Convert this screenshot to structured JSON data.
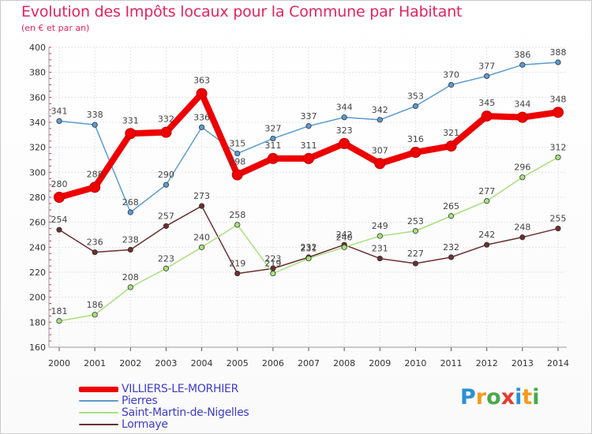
{
  "header": {
    "title": "Evolution des Impôts locaux pour la Commune par Habitant",
    "subtitle": "(en € et par an)"
  },
  "brand": {
    "text": "Proxiti",
    "letters": [
      "P",
      "r",
      "o",
      "x",
      "i",
      "t",
      "i"
    ],
    "colors": [
      "#2a8fd6",
      "#f39a1d",
      "#4aa84a",
      "#e63a2b",
      "#2a8fd6",
      "#f39a1d",
      "#4aa84a"
    ]
  },
  "chart_data": {
    "type": "line",
    "title": "Evolution des Impôts locaux pour la Commune par Habitant",
    "subtitle": "(en € et par an)",
    "xlabel": "",
    "ylabel": "",
    "x": [
      "2000",
      "2001",
      "2002",
      "2003",
      "2004",
      "2005",
      "2006",
      "2007",
      "2008",
      "2009",
      "2010",
      "2011",
      "2012",
      "2013",
      "2014"
    ],
    "ylim": [
      160,
      400
    ],
    "yticks": [
      "160",
      "180",
      "200",
      "220",
      "240",
      "260",
      "280",
      "300",
      "320",
      "340",
      "360",
      "380",
      "400"
    ],
    "grid": true,
    "legend": "bottom-left",
    "series": [
      {
        "name": "VILLIERS-LE-MORHIER",
        "color": "#ee0000",
        "values": [
          280,
          288,
          331,
          332,
          363,
          298,
          311,
          311,
          323,
          307,
          316,
          321,
          345,
          344,
          348
        ],
        "labels": [
          "280",
          "288",
          "331",
          "332",
          "363",
          "298",
          "311",
          "311",
          "323",
          "307",
          "316",
          "321",
          "345",
          "344",
          "348"
        ]
      },
      {
        "name": "Pierres",
        "color": "#5b9bd0",
        "values": [
          341,
          338,
          268,
          290,
          336,
          315,
          327,
          337,
          344,
          342,
          353,
          370,
          377,
          386,
          388
        ],
        "labels": [
          "341",
          "338",
          "268",
          "290",
          "336",
          "315",
          "327",
          "337",
          "344",
          "342",
          "353",
          "370",
          "377",
          "386",
          "388"
        ]
      },
      {
        "name": "Saint-Martin-de-Nigelles",
        "color": "#a8e07e",
        "values": [
          181,
          186,
          208,
          223,
          240,
          258,
          219,
          231,
          240,
          249,
          253,
          265,
          277,
          296,
          312
        ],
        "labels": [
          "181",
          "186",
          "208",
          "223",
          "240",
          "258",
          "219",
          "231",
          "240",
          "249",
          "253",
          "265",
          "277",
          "296",
          "312"
        ]
      },
      {
        "name": "Lormaye",
        "color": "#6b2f2f",
        "values": [
          254,
          236,
          238,
          257,
          273,
          219,
          223,
          232,
          242,
          231,
          227,
          232,
          242,
          248,
          255
        ],
        "labels": [
          "254",
          "236",
          "238",
          "257",
          "273",
          "219",
          "223",
          "232",
          "242",
          "231",
          "227",
          "232",
          "242",
          "248",
          "255"
        ]
      }
    ]
  }
}
